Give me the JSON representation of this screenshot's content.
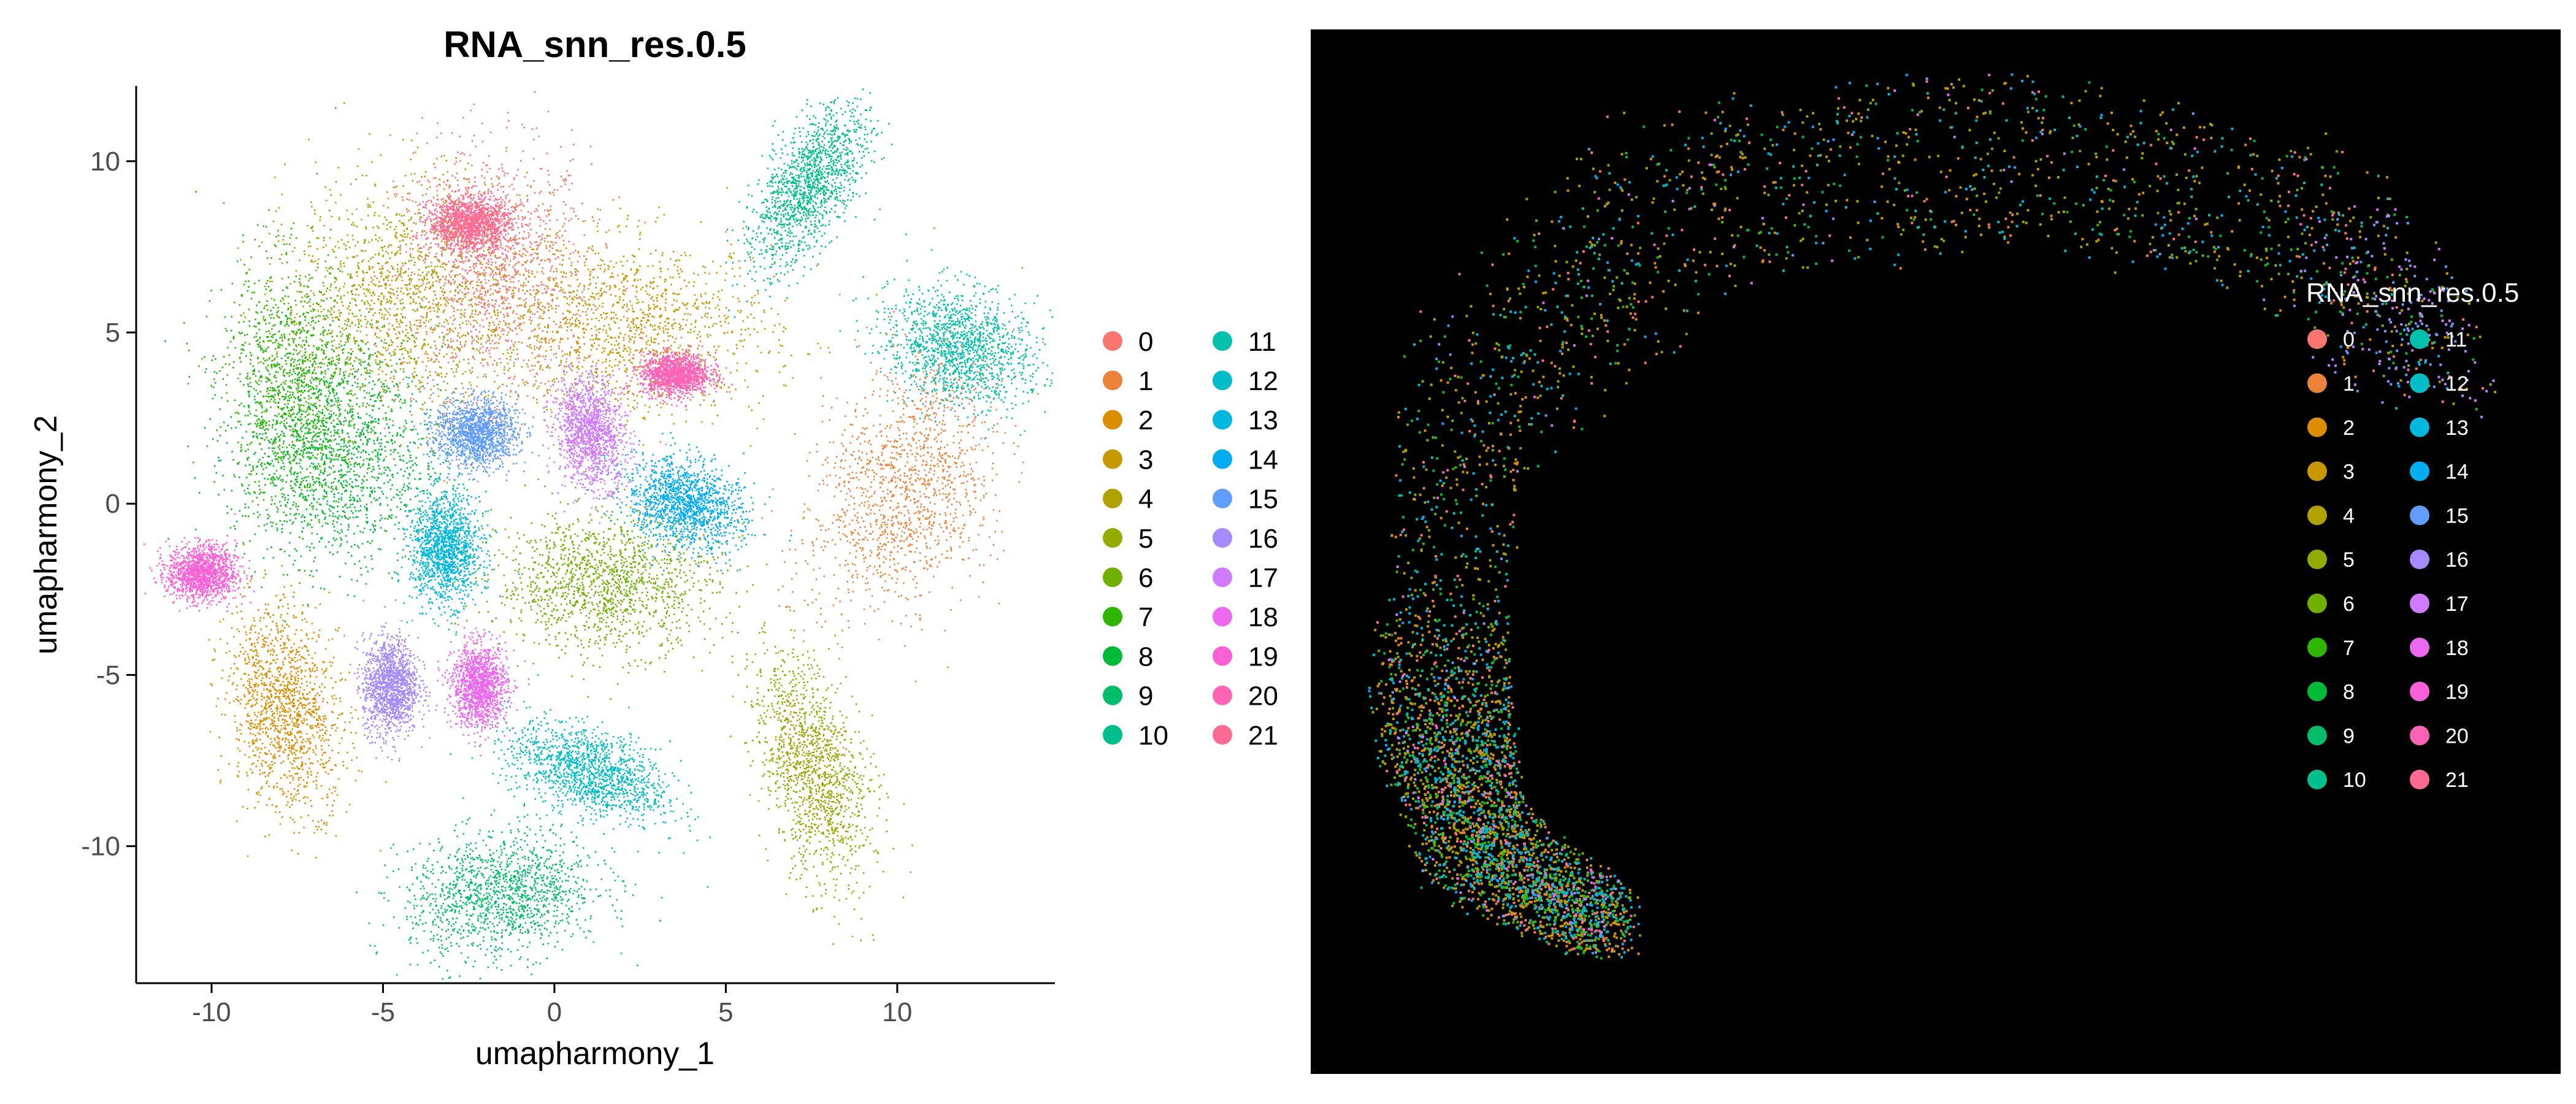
{
  "colors": {
    "c0": "#F8766D",
    "c1": "#EC8239",
    "c2": "#DB8E00",
    "c3": "#C79800",
    "c4": "#AFA100",
    "c5": "#93AA00",
    "c6": "#6FB000",
    "c7": "#2FB600",
    "c8": "#00BA38",
    "c9": "#00BD6A",
    "c10": "#00BF8C",
    "c11": "#00C0AB",
    "c12": "#00BDC7",
    "c13": "#00B7DE",
    "c14": "#00ACF2",
    "c15": "#619CFF",
    "c16": "#A58AFF",
    "c17": "#D07BFF",
    "c18": "#EC69EF",
    "c19": "#FB61D7",
    "c20": "#FF63B6",
    "c21": "#FF6A93",
    "tissue_background": "#000000"
  },
  "chart_data": [
    {
      "type": "scatter",
      "title": "RNA_snn_res.0.5",
      "xlabel": "umapharmony_1",
      "ylabel": "umapharmony_2",
      "xlim": [
        -12.2,
        14.6
      ],
      "ylim": [
        -14.0,
        12.2
      ],
      "x_ticks": [
        "-10",
        "-5",
        "0",
        "5",
        "10"
      ],
      "x_tick_values": [
        -10,
        -5,
        0,
        5,
        10
      ],
      "y_ticks": [
        "10",
        "5",
        "0",
        "-5",
        "-10"
      ],
      "y_tick_values": [
        10,
        5,
        0,
        -5,
        -10
      ],
      "grid": false,
      "legend_position": "right",
      "legend_labels": [
        "0",
        "1",
        "2",
        "3",
        "4",
        "5",
        "6",
        "7",
        "8",
        "9",
        "10",
        "11",
        "12",
        "13",
        "14",
        "15",
        "16",
        "17",
        "18",
        "19",
        "20",
        "21"
      ],
      "series": [
        {
          "cluster": "0",
          "center": [
            -1.8,
            6.8
          ],
          "spread": [
            1.4,
            1.8
          ],
          "orientation_deg": 0
        },
        {
          "cluster": "1",
          "center": [
            10.2,
            0.6
          ],
          "spread": [
            1.2,
            2.0
          ],
          "orientation_deg": -25
        },
        {
          "cluster": "2",
          "center": [
            -7.9,
            -6.0
          ],
          "spread": [
            0.8,
            1.5
          ],
          "orientation_deg": 10
        },
        {
          "cluster": "3",
          "center": [
            2.0,
            5.2
          ],
          "spread": [
            2.2,
            1.3
          ],
          "orientation_deg": -5
        },
        {
          "cluster": "4",
          "center": [
            -4.6,
            6.0
          ],
          "spread": [
            1.6,
            1.8
          ],
          "orientation_deg": -10
        },
        {
          "cluster": "5",
          "center": [
            7.5,
            -7.7
          ],
          "spread": [
            0.7,
            1.7
          ],
          "orientation_deg": 15
        },
        {
          "cluster": "6",
          "center": [
            1.5,
            -2.3
          ],
          "spread": [
            1.6,
            1.0
          ],
          "orientation_deg": 0
        },
        {
          "cluster": "7",
          "center": [
            -7.6,
            3.3
          ],
          "spread": [
            1.0,
            1.9
          ],
          "orientation_deg": 5
        },
        {
          "cluster": "8",
          "center": [
            -6.3,
            1.4
          ],
          "spread": [
            1.5,
            1.6
          ],
          "orientation_deg": 0
        },
        {
          "cluster": "9",
          "center": [
            -1.6,
            -11.4
          ],
          "spread": [
            1.4,
            0.9
          ],
          "orientation_deg": 10
        },
        {
          "cluster": "10",
          "center": [
            7.4,
            9.3
          ],
          "spread": [
            0.6,
            1.3
          ],
          "orientation_deg": -30
        },
        {
          "cluster": "11",
          "center": [
            11.8,
            4.6
          ],
          "spread": [
            1.1,
            0.8
          ],
          "orientation_deg": -20
        },
        {
          "cluster": "12",
          "center": [
            1.0,
            -7.8
          ],
          "spread": [
            1.2,
            0.6
          ],
          "orientation_deg": -20
        },
        {
          "cluster": "13",
          "center": [
            -3.2,
            -1.3
          ],
          "spread": [
            0.5,
            0.8
          ],
          "orientation_deg": 0
        },
        {
          "cluster": "14",
          "center": [
            3.8,
            0.0
          ],
          "spread": [
            0.9,
            0.6
          ],
          "orientation_deg": -20
        },
        {
          "cluster": "15",
          "center": [
            -2.3,
            2.1
          ],
          "spread": [
            0.6,
            0.5
          ],
          "orientation_deg": 0
        },
        {
          "cluster": "16",
          "center": [
            -4.8,
            -5.3
          ],
          "spread": [
            0.4,
            0.7
          ],
          "orientation_deg": 0
        },
        {
          "cluster": "17",
          "center": [
            1.0,
            2.1
          ],
          "spread": [
            0.5,
            0.8
          ],
          "orientation_deg": 10
        },
        {
          "cluster": "18",
          "center": [
            -2.2,
            -5.3
          ],
          "spread": [
            0.4,
            0.6
          ],
          "orientation_deg": 0
        },
        {
          "cluster": "19",
          "center": [
            -10.3,
            -2.0
          ],
          "spread": [
            0.5,
            0.4
          ],
          "orientation_deg": 0
        },
        {
          "cluster": "20",
          "center": [
            3.5,
            3.8
          ],
          "spread": [
            0.5,
            0.3
          ],
          "orientation_deg": 0
        },
        {
          "cluster": "21",
          "center": [
            -2.5,
            8.2
          ],
          "spread": [
            0.6,
            0.4
          ],
          "orientation_deg": 0
        }
      ]
    },
    {
      "type": "scatter",
      "title": "",
      "legend_title": "RNA_snn_res.0.5",
      "legend_position": "right",
      "background": "black",
      "axes_visible": false,
      "legend_labels": [
        "0",
        "1",
        "2",
        "3",
        "4",
        "5",
        "6",
        "7",
        "8",
        "9",
        "10",
        "11",
        "12",
        "13",
        "14",
        "15",
        "16",
        "17",
        "18",
        "19",
        "20",
        "21"
      ],
      "shape": "crescent arc of cells",
      "arc_points": [
        [
          0.1,
          0.62
        ],
        [
          0.13,
          0.35
        ],
        [
          0.3,
          0.16
        ],
        [
          0.55,
          0.12
        ],
        [
          0.79,
          0.18
        ],
        [
          0.91,
          0.33
        ]
      ],
      "arc_tail": [
        [
          0.1,
          0.62
        ],
        [
          0.13,
          0.78
        ],
        [
          0.24,
          0.86
        ]
      ],
      "dominant_clusters": [
        "3",
        "4",
        "2",
        "8",
        "6",
        "0",
        "12",
        "14"
      ],
      "enriched_at_right_tip": [
        "16",
        "17",
        "15"
      ]
    }
  ]
}
